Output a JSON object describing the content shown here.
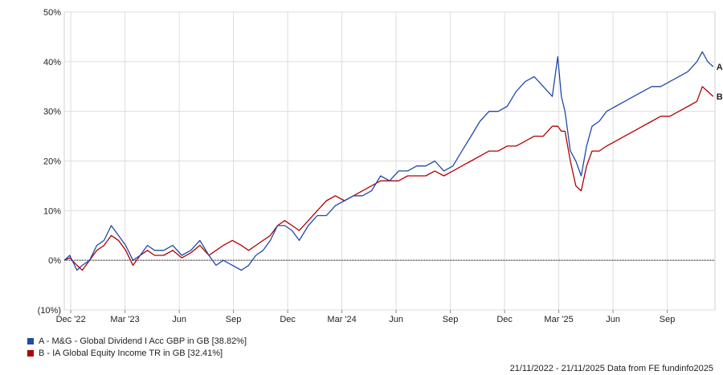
{
  "chart_data": {
    "type": "line",
    "ylabel": "",
    "xlabel": "",
    "ylim": [
      -10,
      50
    ],
    "y_ticks": [
      "50%",
      "40%",
      "30%",
      "20%",
      "10%",
      "0%",
      "(10%)"
    ],
    "y_tick_values": [
      50,
      40,
      30,
      20,
      10,
      0,
      -10
    ],
    "x_ticks": [
      "Dec '22",
      "Mar '23",
      "Jun",
      "Sep",
      "Dec",
      "Mar '24",
      "Jun",
      "Sep",
      "Dec",
      "Mar '25",
      "Jun",
      "Sep"
    ],
    "x_tick_values": [
      0.36,
      3.36,
      6.36,
      9.36,
      12.36,
      15.36,
      18.36,
      21.36,
      24.36,
      27.36,
      30.36,
      33.36
    ],
    "x_range": [
      0,
      36
    ],
    "grid": true,
    "legend_position": "bottom-left",
    "series": [
      {
        "name": "A - M&G - Global Dividend I Acc GBP in GB [38.82%]",
        "label": "A",
        "color": "#1f4aa8",
        "x": [
          0,
          0.3,
          0.7,
          1.0,
          1.4,
          1.8,
          2.2,
          2.6,
          3.0,
          3.4,
          3.8,
          4.2,
          4.6,
          5.0,
          5.5,
          6.0,
          6.5,
          7.0,
          7.5,
          8.0,
          8.4,
          8.8,
          9.3,
          9.8,
          10.2,
          10.6,
          11.0,
          11.4,
          11.8,
          12.2,
          12.6,
          13.0,
          13.5,
          14.0,
          14.5,
          15.0,
          15.5,
          16.0,
          16.5,
          17.0,
          17.5,
          18.0,
          18.5,
          19.0,
          19.5,
          20.0,
          20.5,
          21.0,
          21.5,
          22.0,
          22.5,
          23.0,
          23.5,
          24.0,
          24.5,
          25.0,
          25.5,
          26.0,
          26.5,
          27.0,
          27.3,
          27.5,
          27.7,
          28.0,
          28.3,
          28.6,
          28.9,
          29.2,
          29.6,
          30.0,
          30.5,
          31.0,
          31.5,
          32.0,
          32.5,
          33.0,
          33.5,
          34.0,
          34.5,
          35.0,
          35.3,
          35.6,
          35.9
        ],
        "values": [
          0,
          1,
          -2,
          -1,
          0,
          3,
          4,
          7,
          5,
          3,
          0,
          1,
          3,
          2,
          2,
          3,
          1,
          2,
          4,
          1,
          -1,
          0,
          -1,
          -2,
          -1,
          1,
          2,
          4,
          7,
          7,
          6,
          4,
          7,
          9,
          9,
          11,
          12,
          13,
          13,
          14,
          17,
          16,
          18,
          18,
          19,
          19,
          20,
          18,
          19,
          22,
          25,
          28,
          30,
          30,
          31,
          34,
          36,
          37,
          35,
          33,
          41,
          33,
          30,
          22,
          20,
          17,
          23,
          27,
          28,
          30,
          31,
          32,
          33,
          34,
          35,
          35,
          36,
          37,
          38,
          40,
          42,
          40,
          39
        ]
      },
      {
        "name": "B - IA Global Equity Income TR in GB [32.41%]",
        "label": "B",
        "color": "#b00000",
        "x": [
          0,
          0.3,
          0.7,
          1.0,
          1.4,
          1.8,
          2.2,
          2.6,
          3.0,
          3.4,
          3.8,
          4.2,
          4.6,
          5.0,
          5.5,
          6.0,
          6.5,
          7.0,
          7.5,
          8.0,
          8.4,
          8.8,
          9.3,
          9.8,
          10.2,
          10.6,
          11.0,
          11.4,
          11.8,
          12.2,
          12.6,
          13.0,
          13.5,
          14.0,
          14.5,
          15.0,
          15.5,
          16.0,
          16.5,
          17.0,
          17.5,
          18.0,
          18.5,
          19.0,
          19.5,
          20.0,
          20.5,
          21.0,
          21.5,
          22.0,
          22.5,
          23.0,
          23.5,
          24.0,
          24.5,
          25.0,
          25.5,
          26.0,
          26.5,
          27.0,
          27.3,
          27.5,
          27.7,
          28.0,
          28.3,
          28.6,
          28.9,
          29.2,
          29.6,
          30.0,
          30.5,
          31.0,
          31.5,
          32.0,
          32.5,
          33.0,
          33.5,
          34.0,
          34.5,
          35.0,
          35.3,
          35.6,
          35.9
        ],
        "values": [
          0,
          0.5,
          -1,
          -2,
          0,
          2,
          3,
          5,
          4,
          2,
          -1,
          1,
          2,
          1,
          1,
          2,
          0.5,
          1.5,
          3,
          1,
          2,
          3,
          4,
          3,
          2,
          3,
          4,
          5,
          7,
          8,
          7,
          6,
          8,
          10,
          12,
          13,
          12,
          13,
          14,
          15,
          16,
          16,
          16,
          17,
          17,
          17,
          18,
          17,
          18,
          19,
          20,
          21,
          22,
          22,
          23,
          23,
          24,
          25,
          25,
          27,
          27,
          26,
          26,
          20,
          15,
          14,
          19,
          22,
          22,
          23,
          24,
          25,
          26,
          27,
          28,
          29,
          29,
          30,
          31,
          32,
          35,
          34,
          33
        ]
      }
    ],
    "zero_line": true,
    "footer": "21/11/2022 - 21/11/2025 Data from FE fundinfo2025"
  }
}
